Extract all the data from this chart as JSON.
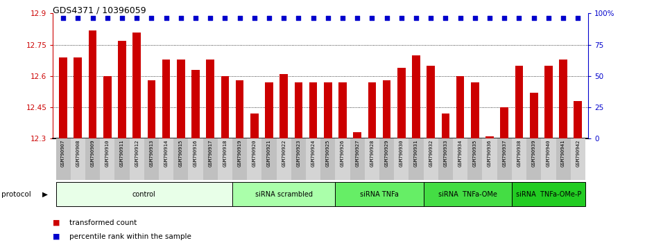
{
  "title": "GDS4371 / 10396059",
  "samples": [
    "GSM790907",
    "GSM790908",
    "GSM790909",
    "GSM790910",
    "GSM790911",
    "GSM790912",
    "GSM790913",
    "GSM790914",
    "GSM790915",
    "GSM790916",
    "GSM790917",
    "GSM790918",
    "GSM790919",
    "GSM790920",
    "GSM790921",
    "GSM790922",
    "GSM790923",
    "GSM790924",
    "GSM790925",
    "GSM790926",
    "GSM790927",
    "GSM790928",
    "GSM790929",
    "GSM790930",
    "GSM790931",
    "GSM790932",
    "GSM790933",
    "GSM790934",
    "GSM790935",
    "GSM790936",
    "GSM790937",
    "GSM790938",
    "GSM790939",
    "GSM790940",
    "GSM790941",
    "GSM790942"
  ],
  "values": [
    12.69,
    12.69,
    12.82,
    12.6,
    12.77,
    12.81,
    12.58,
    12.68,
    12.68,
    12.63,
    12.68,
    12.6,
    12.58,
    12.42,
    12.57,
    12.61,
    12.57,
    12.57,
    12.57,
    12.57,
    12.33,
    12.57,
    12.58,
    12.64,
    12.7,
    12.65,
    12.42,
    12.6,
    12.57,
    12.31,
    12.45,
    12.65,
    12.52,
    12.65,
    12.68,
    12.48
  ],
  "groups": [
    {
      "label": "control",
      "start": 0,
      "end": 11,
      "color": "#e8ffe8"
    },
    {
      "label": "siRNA scrambled",
      "start": 12,
      "end": 18,
      "color": "#aaffaa"
    },
    {
      "label": "siRNA TNFa",
      "start": 19,
      "end": 24,
      "color": "#66ee66"
    },
    {
      "label": "siRNA  TNFa-OMe",
      "start": 25,
      "end": 30,
      "color": "#44dd44"
    },
    {
      "label": "siRNA  TNFa-OMe-P",
      "start": 31,
      "end": 35,
      "color": "#22cc22"
    }
  ],
  "ymin": 12.3,
  "ymax": 12.9,
  "yticks_left": [
    12.3,
    12.45,
    12.6,
    12.75,
    12.9
  ],
  "ytick_labels_left": [
    "12.3",
    "12.45",
    "12.6",
    "12.75",
    "12.9"
  ],
  "yticks_right": [
    0,
    25,
    50,
    75,
    100
  ],
  "ytick_labels_right": [
    "0",
    "25",
    "50",
    "75",
    "100%"
  ],
  "bar_color": "#cc0000",
  "dot_color": "#0000cc",
  "tick_color_left": "#cc0000",
  "tick_color_right": "#0000cc",
  "protocol_label": "protocol",
  "legend": [
    {
      "label": "transformed count",
      "color": "#cc0000"
    },
    {
      "label": "percentile rank within the sample",
      "color": "#0000cc"
    }
  ],
  "xlabel_bg_odd": "#d4d4d4",
  "xlabel_bg_even": "#c0c0c0"
}
